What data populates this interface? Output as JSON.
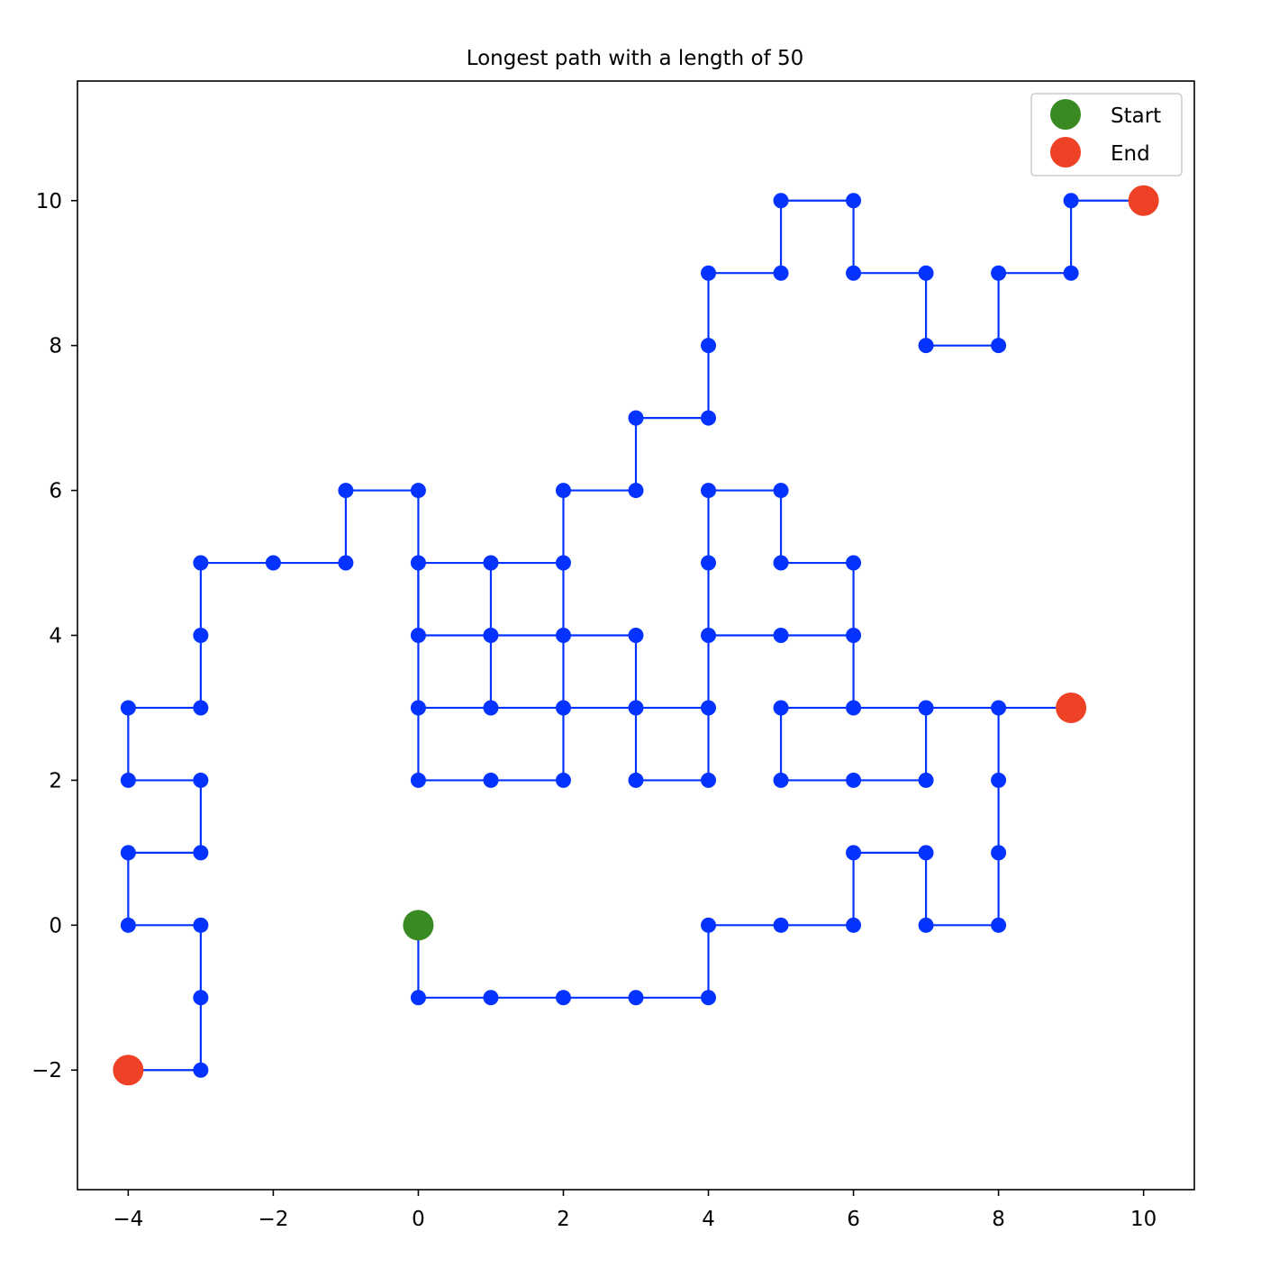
{
  "chart_data": {
    "type": "line",
    "title": "Longest path with a length of 50",
    "xlabel": "",
    "ylabel": "",
    "xlim": [
      -4.7,
      10.7
    ],
    "ylim": [
      -3.65,
      11.65
    ],
    "x_ticks": [
      -4,
      -2,
      0,
      2,
      4,
      6,
      8,
      10
    ],
    "y_ticks": [
      -2,
      0,
      2,
      4,
      6,
      8,
      10
    ],
    "x_tick_labels": [
      "−4",
      "−2",
      "0",
      "2",
      "4",
      "6",
      "8",
      "10"
    ],
    "y_tick_labels": [
      "−2",
      "0",
      "2",
      "4",
      "6",
      "8",
      "10"
    ],
    "grid": false,
    "legend_position": "top-right",
    "colors": {
      "path": "#0433ff",
      "start": "#3a8a23",
      "end": "#ee4125"
    },
    "segments": [
      [
        [
          0,
          0
        ],
        [
          0,
          -1
        ],
        [
          1,
          -1
        ],
        [
          2,
          -1
        ],
        [
          3,
          -1
        ],
        [
          4,
          -1
        ],
        [
          4,
          0
        ],
        [
          5,
          0
        ],
        [
          6,
          0
        ],
        [
          6,
          1
        ],
        [
          7,
          1
        ],
        [
          7,
          0
        ],
        [
          8,
          0
        ],
        [
          8,
          1
        ],
        [
          8,
          2
        ],
        [
          8,
          3
        ],
        [
          9,
          3
        ]
      ],
      [
        [
          8,
          3
        ],
        [
          7,
          3
        ],
        [
          6,
          3
        ],
        [
          6,
          4
        ],
        [
          6,
          5
        ],
        [
          5,
          5
        ],
        [
          5,
          6
        ],
        [
          4,
          6
        ],
        [
          4,
          5
        ],
        [
          4,
          4
        ],
        [
          4,
          3
        ],
        [
          4,
          2
        ],
        [
          3,
          2
        ],
        [
          3,
          3
        ],
        [
          3,
          4
        ],
        [
          2,
          4
        ],
        [
          1,
          4
        ],
        [
          0,
          4
        ],
        [
          0,
          5
        ],
        [
          0,
          6
        ],
        [
          -1,
          6
        ],
        [
          -1,
          5
        ],
        [
          -2,
          5
        ],
        [
          -3,
          5
        ],
        [
          -3,
          4
        ],
        [
          -3,
          3
        ],
        [
          -4,
          3
        ],
        [
          -4,
          2
        ],
        [
          -3,
          2
        ],
        [
          -3,
          1
        ],
        [
          -4,
          1
        ],
        [
          -4,
          0
        ],
        [
          -3,
          0
        ],
        [
          -3,
          -1
        ],
        [
          -3,
          -2
        ],
        [
          -4,
          -2
        ]
      ],
      [
        [
          6,
          3
        ],
        [
          5,
          3
        ],
        [
          5,
          2
        ],
        [
          6,
          2
        ],
        [
          7,
          2
        ],
        [
          7,
          3
        ]
      ],
      [
        [
          4,
          4
        ],
        [
          5,
          4
        ],
        [
          6,
          4
        ]
      ],
      [
        [
          4,
          3
        ],
        [
          3,
          3
        ],
        [
          2,
          3
        ],
        [
          1,
          3
        ],
        [
          0,
          3
        ],
        [
          0,
          2
        ],
        [
          1,
          2
        ],
        [
          2,
          2
        ],
        [
          2,
          3
        ],
        [
          2,
          4
        ],
        [
          2,
          5
        ],
        [
          1,
          5
        ],
        [
          0,
          5
        ],
        [
          0,
          4
        ],
        [
          0,
          3
        ]
      ],
      [
        [
          1,
          3
        ],
        [
          1,
          4
        ],
        [
          1,
          5
        ]
      ],
      [
        [
          2,
          5
        ],
        [
          2,
          6
        ],
        [
          3,
          6
        ],
        [
          3,
          7
        ],
        [
          4,
          7
        ],
        [
          4,
          8
        ],
        [
          4,
          9
        ],
        [
          5,
          9
        ],
        [
          5,
          10
        ],
        [
          6,
          10
        ],
        [
          6,
          9
        ],
        [
          7,
          9
        ],
        [
          7,
          8
        ],
        [
          8,
          8
        ],
        [
          8,
          9
        ],
        [
          9,
          9
        ],
        [
          9,
          10
        ],
        [
          10,
          10
        ]
      ]
    ],
    "start_points": [
      [
        0,
        0
      ]
    ],
    "end_points": [
      [
        9,
        3
      ],
      [
        -4,
        -2
      ],
      [
        10,
        10
      ]
    ],
    "legend": [
      {
        "label": "Start",
        "color": "#3a8a23"
      },
      {
        "label": "End",
        "color": "#ee4125"
      }
    ]
  }
}
